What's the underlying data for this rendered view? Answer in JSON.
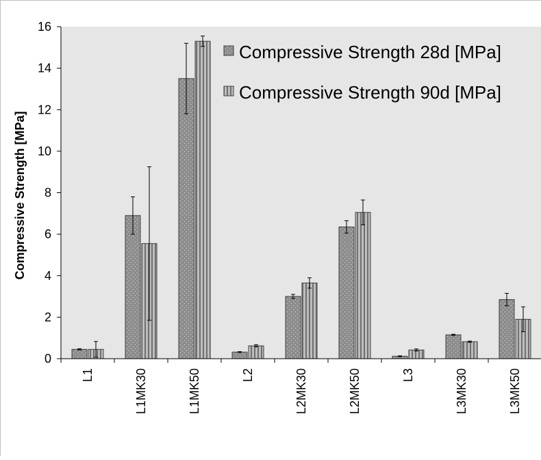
{
  "chart_data": {
    "type": "bar",
    "categories": [
      "L1",
      "L1MK30",
      "L1MK50",
      "L2",
      "L2MK30",
      "L2MK50",
      "L3",
      "L3MK30",
      "L3MK50"
    ],
    "series": [
      {
        "name": "Compressive Strength 28d [MPa]",
        "values": [
          0.45,
          6.9,
          13.5,
          0.32,
          3.0,
          6.35,
          0.12,
          1.15,
          2.85
        ],
        "error": [
          0.03,
          0.9,
          1.7,
          0.02,
          0.1,
          0.3,
          0.02,
          0.03,
          0.3
        ]
      },
      {
        "name": "Compressive Strength 90d [MPa]",
        "values": [
          0.45,
          5.55,
          15.3,
          0.62,
          3.65,
          7.05,
          0.42,
          0.82,
          1.9
        ],
        "error": [
          0.38,
          3.7,
          0.25,
          0.05,
          0.25,
          0.6,
          0.05,
          0.03,
          0.6
        ]
      }
    ],
    "xlabel": "",
    "ylabel": "Compressive Strength [MPa]",
    "ylim": [
      0,
      16
    ],
    "yticks": [
      0,
      2,
      4,
      6,
      8,
      10,
      12,
      14,
      16
    ],
    "grid": false,
    "legend": "top-right",
    "colors": {
      "plot_bg": "#e6e6e6",
      "bar_28d": "#8c8c8c",
      "bar_90d": "#a8a8a8",
      "axis": "#000000"
    }
  }
}
